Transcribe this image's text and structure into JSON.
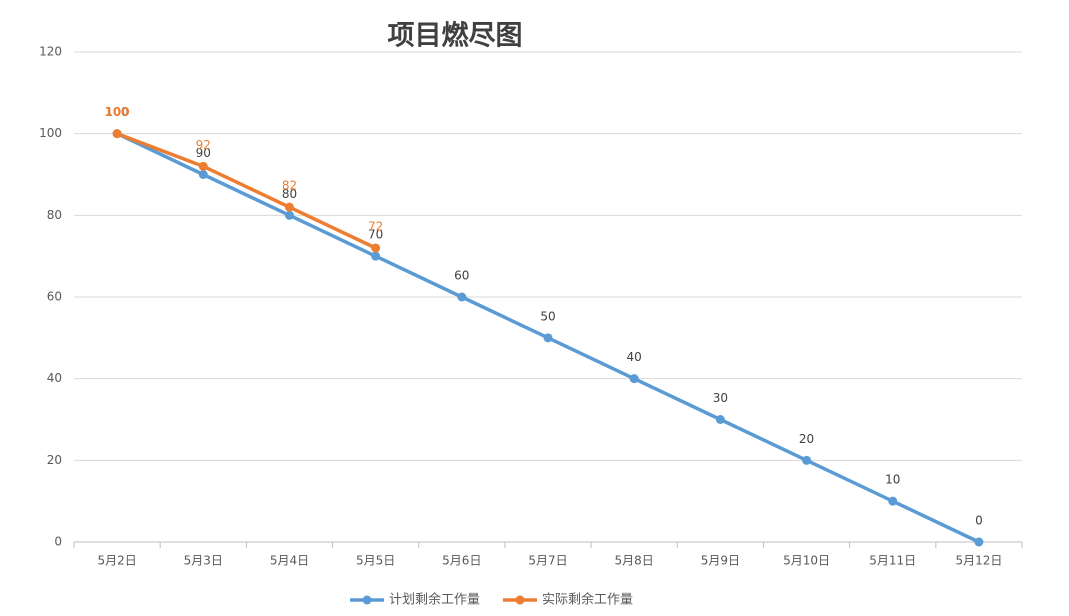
{
  "chart_data": {
    "type": "line",
    "title": "项目燃尽图",
    "categories": [
      "5月2日",
      "5月3日",
      "5月4日",
      "5月5日",
      "5月6日",
      "5月7日",
      "5月8日",
      "5月9日",
      "5月10日",
      "5月11日",
      "5月12日"
    ],
    "series": [
      {
        "name": "计划剩余工作量",
        "color": "#5b9bd5",
        "values": [
          100,
          90,
          80,
          70,
          60,
          50,
          40,
          30,
          20,
          10,
          0
        ]
      },
      {
        "name": "实际剩余工作量",
        "color": "#ed7d31",
        "values": [
          100,
          92,
          82,
          72,
          null,
          null,
          null,
          null,
          null,
          null,
          null
        ]
      }
    ],
    "ylim": [
      0,
      120
    ],
    "yticks": [
      0,
      20,
      40,
      60,
      80,
      100,
      120
    ],
    "grid": true,
    "legend": "bottom"
  }
}
